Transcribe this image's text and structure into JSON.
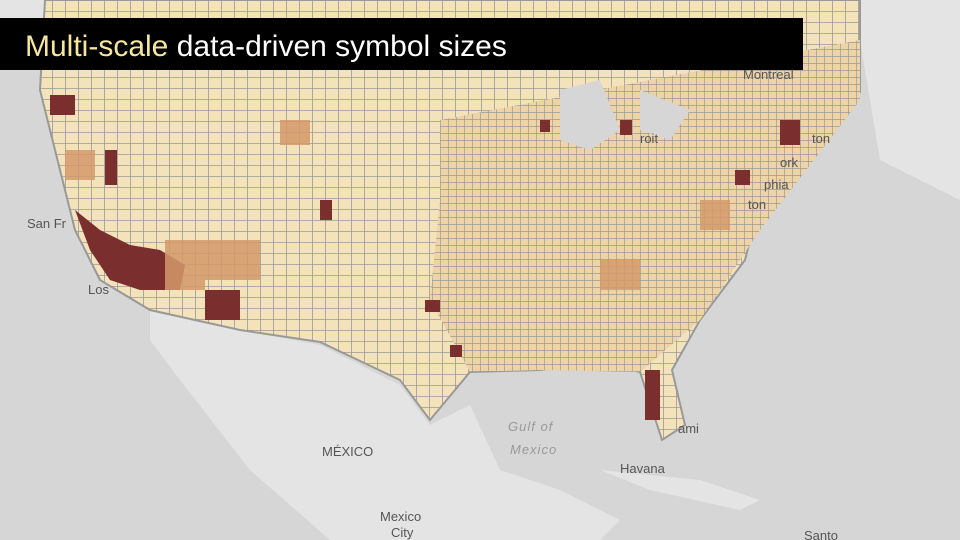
{
  "title": {
    "highlight": "Multi-scale",
    "rest": "data-driven symbol sizes"
  },
  "map_labels": {
    "montreal": "Montreal",
    "san_francisco": "San Fr",
    "los_angeles": "Los",
    "detroit": "roit",
    "boston": "ton",
    "new_york": "ork",
    "philadelphia": "phia",
    "washington": "ton",
    "miami": "ami",
    "mexico_country": "MÉXICO",
    "gulf_line1": "Gulf of",
    "gulf_line2": "Mexico",
    "havana": "Havana",
    "mexico_city_line1": "Mexico",
    "mexico_city_line2": "City",
    "santo": "Santo"
  }
}
